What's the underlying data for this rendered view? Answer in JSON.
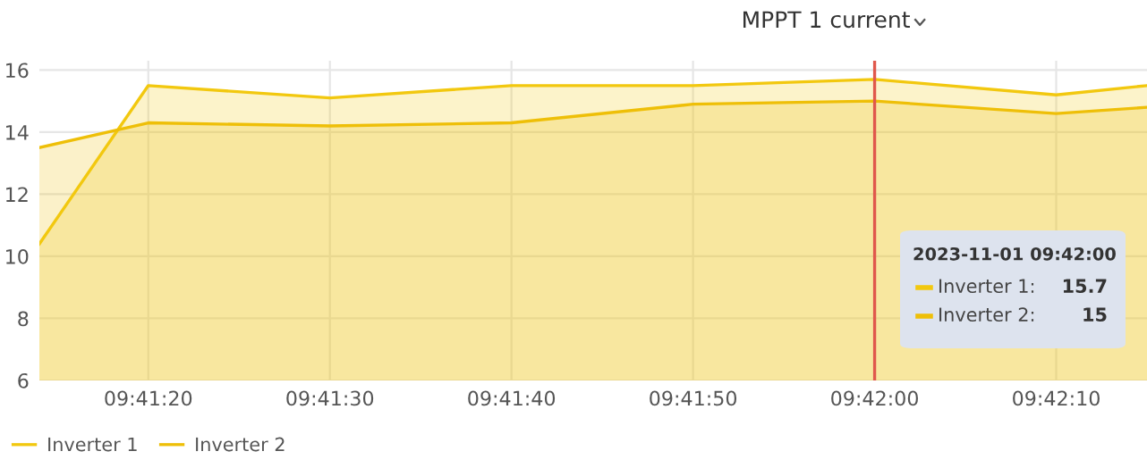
{
  "chart_data": {
    "type": "area",
    "title": "MPPT 1 current",
    "x": [
      "2023-11-01T09:41:14",
      "2023-11-01T09:41:20",
      "2023-11-01T09:41:30",
      "2023-11-01T09:41:40",
      "2023-11-01T09:41:50",
      "2023-11-01T09:42:00",
      "2023-11-01T09:42:10",
      "2023-11-01T09:42:15"
    ],
    "series": [
      {
        "name": "Inverter 1",
        "color": "#f2c80f",
        "values": [
          10.4,
          15.5,
          15.1,
          15.5,
          15.5,
          15.7,
          15.2,
          15.5
        ]
      },
      {
        "name": "Inverter 2",
        "color": "#eebf08",
        "values": [
          13.5,
          14.3,
          14.2,
          14.3,
          14.9,
          15,
          14.6,
          14.8
        ]
      }
    ],
    "xlim": [
      "2023-11-01T09:41:14",
      "2023-11-01T09:42:15"
    ],
    "xticks": [
      {
        "value": "2023-11-01T09:41:20",
        "label": "09:41:20"
      },
      {
        "value": "2023-11-01T09:41:30",
        "label": "09:41:30"
      },
      {
        "value": "2023-11-01T09:41:40",
        "label": "09:41:40"
      },
      {
        "value": "2023-11-01T09:41:50",
        "label": "09:41:50"
      },
      {
        "value": "2023-11-01T09:42:00",
        "label": "09:42:00"
      },
      {
        "value": "2023-11-01T09:42:10",
        "label": "09:42:10"
      }
    ],
    "ylim": [
      6,
      16.3
    ],
    "yticks": [
      6,
      8,
      10,
      12,
      14,
      16
    ],
    "ref_lines": [
      {
        "axis": "x",
        "value": "2023-11-01T09:42:00",
        "color": "#e0584c"
      }
    ],
    "annotations": [
      "2023-11-01 09:42:00",
      "Inverter 1:",
      "15.7",
      "Inverter 2:",
      "15"
    ],
    "grid": true,
    "legend": "bottom left"
  }
}
